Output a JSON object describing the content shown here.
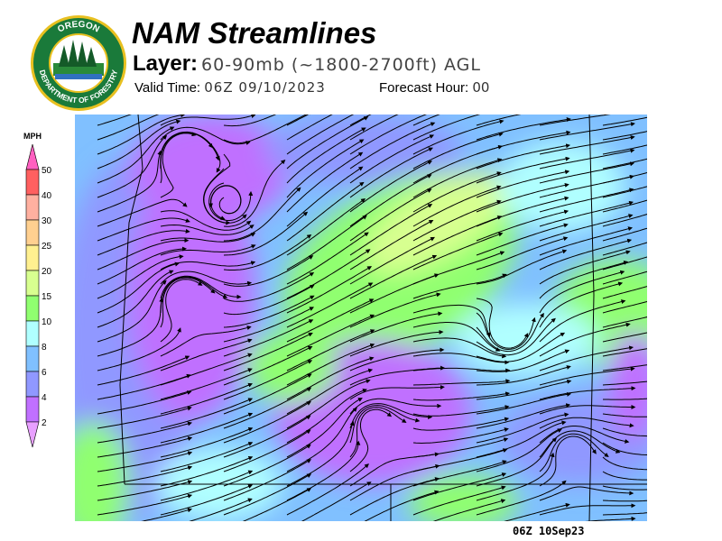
{
  "header": {
    "title": "NAM Streamlines",
    "layer_label": "Layer:",
    "layer_value": "60-90mb (~1800-2700ft) AGL",
    "valid_label": "Valid Time:",
    "valid_value": "06Z 09/10/2023",
    "forecast_label": "Forecast Hour:",
    "forecast_value": "00"
  },
  "logo": {
    "text_top": "OREGON",
    "text_bottom": "DEPARTMENT OF FORESTRY",
    "colors": {
      "ring": "#1a7a3a",
      "border": "#e8c020"
    }
  },
  "legend": {
    "unit": "MPH",
    "ticks": [
      "50",
      "40",
      "30",
      "25",
      "20",
      "15",
      "10",
      "8",
      "6",
      "4",
      "2"
    ],
    "colors": [
      "#ff60c0",
      "#ff6060",
      "#ffb0a0",
      "#ffd090",
      "#fff090",
      "#d8ff90",
      "#90ff70",
      "#b0ffff",
      "#80c0ff",
      "#9098ff",
      "#c070ff",
      "#e8a0ff"
    ]
  },
  "map": {
    "stamp": "06Z 10Sep23"
  }
}
